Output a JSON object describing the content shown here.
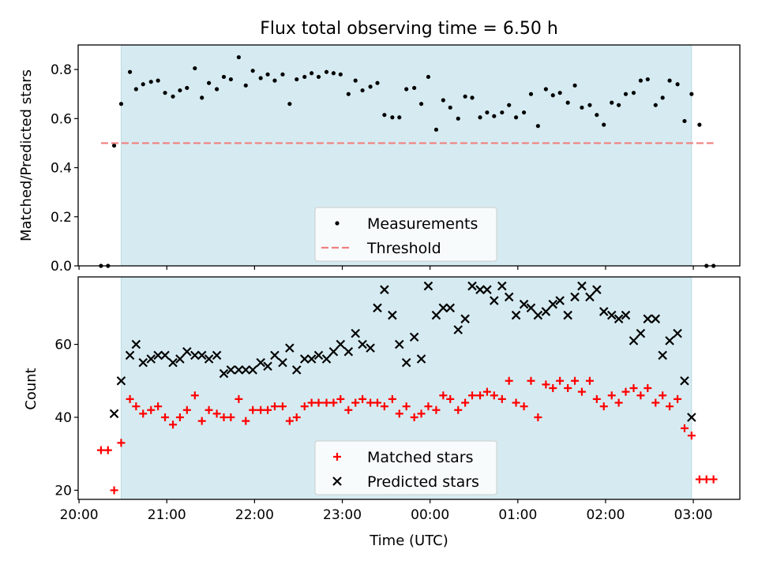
{
  "chart_data": [
    {
      "type": "scatter",
      "title": "Flux total observing time = 6.50 h",
      "xlabel": "",
      "ylabel": "Matched/Predicted stars",
      "ylim": [
        0.0,
        0.9
      ],
      "yticks": [
        "0.0",
        "0.2",
        "0.4",
        "0.6",
        "0.8"
      ],
      "yticks_values": [
        0.0,
        0.2,
        0.4,
        0.6,
        0.8
      ],
      "xlim_hours": [
        19.99,
        27.53
      ],
      "shaded_span_hours": [
        20.48,
        26.98
      ],
      "shade_color": "#d6ebf1",
      "threshold": 0.5,
      "legend": {
        "placement": "lower center",
        "entries": [
          {
            "label": "Measurements",
            "color": "#000000",
            "marker": "dot"
          },
          {
            "label": "Threshold",
            "color": "#f07f7f",
            "marker": "dashed-line"
          }
        ]
      },
      "series": [
        {
          "name": "Measurements",
          "color": "#000000",
          "marker": "dot",
          "points": [
            [
              20.25,
              0.0
            ],
            [
              20.33,
              0.0
            ],
            [
              20.4,
              0.49
            ],
            [
              20.48,
              0.66
            ],
            [
              20.58,
              0.79
            ],
            [
              20.65,
              0.72
            ],
            [
              20.73,
              0.74
            ],
            [
              20.82,
              0.75
            ],
            [
              20.9,
              0.755
            ],
            [
              20.98,
              0.705
            ],
            [
              21.07,
              0.69
            ],
            [
              21.15,
              0.715
            ],
            [
              21.23,
              0.725
            ],
            [
              21.32,
              0.805
            ],
            [
              21.4,
              0.685
            ],
            [
              21.48,
              0.745
            ],
            [
              21.57,
              0.72
            ],
            [
              21.65,
              0.77
            ],
            [
              21.73,
              0.76
            ],
            [
              21.82,
              0.85
            ],
            [
              21.9,
              0.735
            ],
            [
              21.98,
              0.795
            ],
            [
              22.07,
              0.765
            ],
            [
              22.15,
              0.78
            ],
            [
              22.23,
              0.755
            ],
            [
              22.32,
              0.78
            ],
            [
              22.4,
              0.66
            ],
            [
              22.48,
              0.76
            ],
            [
              22.57,
              0.77
            ],
            [
              22.65,
              0.785
            ],
            [
              22.73,
              0.77
            ],
            [
              22.82,
              0.79
            ],
            [
              22.9,
              0.785
            ],
            [
              22.98,
              0.78
            ],
            [
              23.07,
              0.7
            ],
            [
              23.15,
              0.755
            ],
            [
              23.23,
              0.715
            ],
            [
              23.32,
              0.73
            ],
            [
              23.4,
              0.745
            ],
            [
              23.48,
              0.615
            ],
            [
              23.57,
              0.605
            ],
            [
              23.65,
              0.605
            ],
            [
              23.73,
              0.72
            ],
            [
              23.82,
              0.725
            ],
            [
              23.9,
              0.66
            ],
            [
              23.98,
              0.77
            ],
            [
              24.07,
              0.555
            ],
            [
              24.15,
              0.675
            ],
            [
              24.23,
              0.645
            ],
            [
              24.32,
              0.6
            ],
            [
              24.4,
              0.69
            ],
            [
              24.48,
              0.685
            ],
            [
              24.57,
              0.605
            ],
            [
              24.65,
              0.625
            ],
            [
              24.73,
              0.61
            ],
            [
              24.82,
              0.625
            ],
            [
              24.9,
              0.655
            ],
            [
              24.98,
              0.605
            ],
            [
              25.07,
              0.625
            ],
            [
              25.15,
              0.7
            ],
            [
              25.23,
              0.57
            ],
            [
              25.32,
              0.72
            ],
            [
              25.4,
              0.695
            ],
            [
              25.48,
              0.705
            ],
            [
              25.57,
              0.665
            ],
            [
              25.65,
              0.735
            ],
            [
              25.73,
              0.645
            ],
            [
              25.82,
              0.655
            ],
            [
              25.9,
              0.615
            ],
            [
              25.98,
              0.575
            ],
            [
              26.07,
              0.665
            ],
            [
              26.15,
              0.655
            ],
            [
              26.23,
              0.7
            ],
            [
              26.32,
              0.705
            ],
            [
              26.4,
              0.755
            ],
            [
              26.48,
              0.76
            ],
            [
              26.57,
              0.655
            ],
            [
              26.65,
              0.685
            ],
            [
              26.73,
              0.755
            ],
            [
              26.82,
              0.74
            ],
            [
              26.9,
              0.59
            ],
            [
              26.98,
              0.7
            ],
            [
              27.07,
              0.575
            ],
            [
              27.15,
              0.0
            ],
            [
              27.23,
              0.0
            ]
          ]
        },
        {
          "name": "Threshold",
          "color": "#f07f7f",
          "line_style": "dashed",
          "points": [
            [
              20.25,
              0.5
            ],
            [
              27.23,
              0.5
            ]
          ]
        }
      ]
    },
    {
      "type": "scatter",
      "title": "",
      "xlabel": "Time (UTC)",
      "ylabel": "Count",
      "ylim": [
        17.5,
        78.5
      ],
      "yticks": [
        "20",
        "40",
        "60"
      ],
      "yticks_values": [
        20,
        40,
        60
      ],
      "xlim_hours": [
        19.99,
        27.53
      ],
      "xticks": [
        "20:00",
        "21:00",
        "22:00",
        "23:00",
        "00:00",
        "01:00",
        "02:00",
        "03:00"
      ],
      "xticks_hours": [
        20,
        21,
        22,
        23,
        24,
        25,
        26,
        27
      ],
      "shaded_span_hours": [
        20.48,
        26.98
      ],
      "shade_color": "#d6ebf1",
      "legend": {
        "placement": "lower center",
        "entries": [
          {
            "label": "Matched stars",
            "color": "#ff0000",
            "marker": "plus"
          },
          {
            "label": "Predicted stars",
            "color": "#000000",
            "marker": "x"
          }
        ]
      },
      "series": [
        {
          "name": "Matched stars",
          "color": "#ff0000",
          "marker": "plus",
          "points": [
            [
              20.25,
              31
            ],
            [
              20.33,
              31
            ],
            [
              20.4,
              20
            ],
            [
              20.48,
              33
            ],
            [
              20.58,
              45
            ],
            [
              20.65,
              43
            ],
            [
              20.73,
              41
            ],
            [
              20.82,
              42
            ],
            [
              20.9,
              43
            ],
            [
              20.98,
              40
            ],
            [
              21.07,
              38
            ],
            [
              21.15,
              40
            ],
            [
              21.23,
              42
            ],
            [
              21.32,
              46
            ],
            [
              21.4,
              39
            ],
            [
              21.48,
              42
            ],
            [
              21.57,
              41
            ],
            [
              21.65,
              40
            ],
            [
              21.73,
              40
            ],
            [
              21.82,
              45
            ],
            [
              21.9,
              39
            ],
            [
              21.98,
              42
            ],
            [
              22.07,
              42
            ],
            [
              22.15,
              42
            ],
            [
              22.23,
              43
            ],
            [
              22.32,
              43
            ],
            [
              22.4,
              39
            ],
            [
              22.48,
              40
            ],
            [
              22.57,
              43
            ],
            [
              22.65,
              44
            ],
            [
              22.73,
              44
            ],
            [
              22.82,
              44
            ],
            [
              22.9,
              44
            ],
            [
              22.98,
              45
            ],
            [
              23.07,
              42
            ],
            [
              23.15,
              44
            ],
            [
              23.23,
              45
            ],
            [
              23.32,
              44
            ],
            [
              23.4,
              44
            ],
            [
              23.48,
              43
            ],
            [
              23.57,
              45
            ],
            [
              23.65,
              41
            ],
            [
              23.73,
              43
            ],
            [
              23.82,
              40
            ],
            [
              23.9,
              41
            ],
            [
              23.98,
              43
            ],
            [
              24.07,
              42
            ],
            [
              24.15,
              46
            ],
            [
              24.23,
              45
            ],
            [
              24.32,
              42
            ],
            [
              24.4,
              44
            ],
            [
              24.48,
              46
            ],
            [
              24.57,
              46
            ],
            [
              24.65,
              47
            ],
            [
              24.73,
              46
            ],
            [
              24.82,
              45
            ],
            [
              24.9,
              50
            ],
            [
              24.98,
              44
            ],
            [
              25.07,
              43
            ],
            [
              25.15,
              50
            ],
            [
              25.23,
              40
            ],
            [
              25.32,
              49
            ],
            [
              25.4,
              48
            ],
            [
              25.48,
              50
            ],
            [
              25.57,
              48
            ],
            [
              25.65,
              50
            ],
            [
              25.73,
              47
            ],
            [
              25.82,
              50
            ],
            [
              25.9,
              45
            ],
            [
              25.98,
              43
            ],
            [
              26.07,
              46
            ],
            [
              26.15,
              44
            ],
            [
              26.23,
              47
            ],
            [
              26.32,
              48
            ],
            [
              26.4,
              46
            ],
            [
              26.48,
              48
            ],
            [
              26.57,
              44
            ],
            [
              26.65,
              46
            ],
            [
              26.73,
              43
            ],
            [
              26.82,
              45
            ],
            [
              26.9,
              37
            ],
            [
              26.98,
              35
            ],
            [
              27.07,
              23
            ],
            [
              27.15,
              23
            ],
            [
              27.23,
              23
            ]
          ]
        },
        {
          "name": "Predicted stars",
          "color": "#000000",
          "marker": "x",
          "points": [
            [
              20.4,
              41
            ],
            [
              20.48,
              50
            ],
            [
              20.58,
              57
            ],
            [
              20.65,
              60
            ],
            [
              20.73,
              55
            ],
            [
              20.82,
              56
            ],
            [
              20.9,
              57
            ],
            [
              20.98,
              57
            ],
            [
              21.07,
              55
            ],
            [
              21.15,
              56
            ],
            [
              21.23,
              58
            ],
            [
              21.32,
              57
            ],
            [
              21.4,
              57
            ],
            [
              21.48,
              56
            ],
            [
              21.57,
              57
            ],
            [
              21.65,
              52
            ],
            [
              21.73,
              53
            ],
            [
              21.82,
              53
            ],
            [
              21.9,
              53
            ],
            [
              21.98,
              53
            ],
            [
              22.07,
              55
            ],
            [
              22.15,
              54
            ],
            [
              22.23,
              57
            ],
            [
              22.32,
              55
            ],
            [
              22.4,
              59
            ],
            [
              22.48,
              53
            ],
            [
              22.57,
              56
            ],
            [
              22.65,
              56
            ],
            [
              22.73,
              57
            ],
            [
              22.82,
              56
            ],
            [
              22.9,
              58
            ],
            [
              22.98,
              60
            ],
            [
              23.07,
              58
            ],
            [
              23.15,
              63
            ],
            [
              23.23,
              60
            ],
            [
              23.32,
              59
            ],
            [
              23.4,
              70
            ],
            [
              23.48,
              75
            ],
            [
              23.57,
              68
            ],
            [
              23.65,
              60
            ],
            [
              23.73,
              55
            ],
            [
              23.82,
              62
            ],
            [
              23.9,
              56
            ],
            [
              23.98,
              76
            ],
            [
              24.07,
              68
            ],
            [
              24.15,
              70
            ],
            [
              24.23,
              70
            ],
            [
              24.32,
              64
            ],
            [
              24.4,
              67
            ],
            [
              24.48,
              76
            ],
            [
              24.57,
              75
            ],
            [
              24.65,
              75
            ],
            [
              24.73,
              72
            ],
            [
              24.82,
              76
            ],
            [
              24.9,
              73
            ],
            [
              24.98,
              68
            ],
            [
              25.07,
              71
            ],
            [
              25.15,
              70
            ],
            [
              25.23,
              68
            ],
            [
              25.32,
              69
            ],
            [
              25.4,
              71
            ],
            [
              25.48,
              72
            ],
            [
              25.57,
              68
            ],
            [
              25.65,
              73
            ],
            [
              25.73,
              76
            ],
            [
              25.82,
              73
            ],
            [
              25.9,
              75
            ],
            [
              25.98,
              69
            ],
            [
              26.07,
              68
            ],
            [
              26.15,
              67
            ],
            [
              26.23,
              68
            ],
            [
              26.32,
              61
            ],
            [
              26.4,
              63
            ],
            [
              26.48,
              67
            ],
            [
              26.57,
              67
            ],
            [
              26.65,
              57
            ],
            [
              26.73,
              61
            ],
            [
              26.82,
              63
            ],
            [
              26.9,
              50
            ],
            [
              26.98,
              40
            ]
          ]
        }
      ]
    }
  ]
}
